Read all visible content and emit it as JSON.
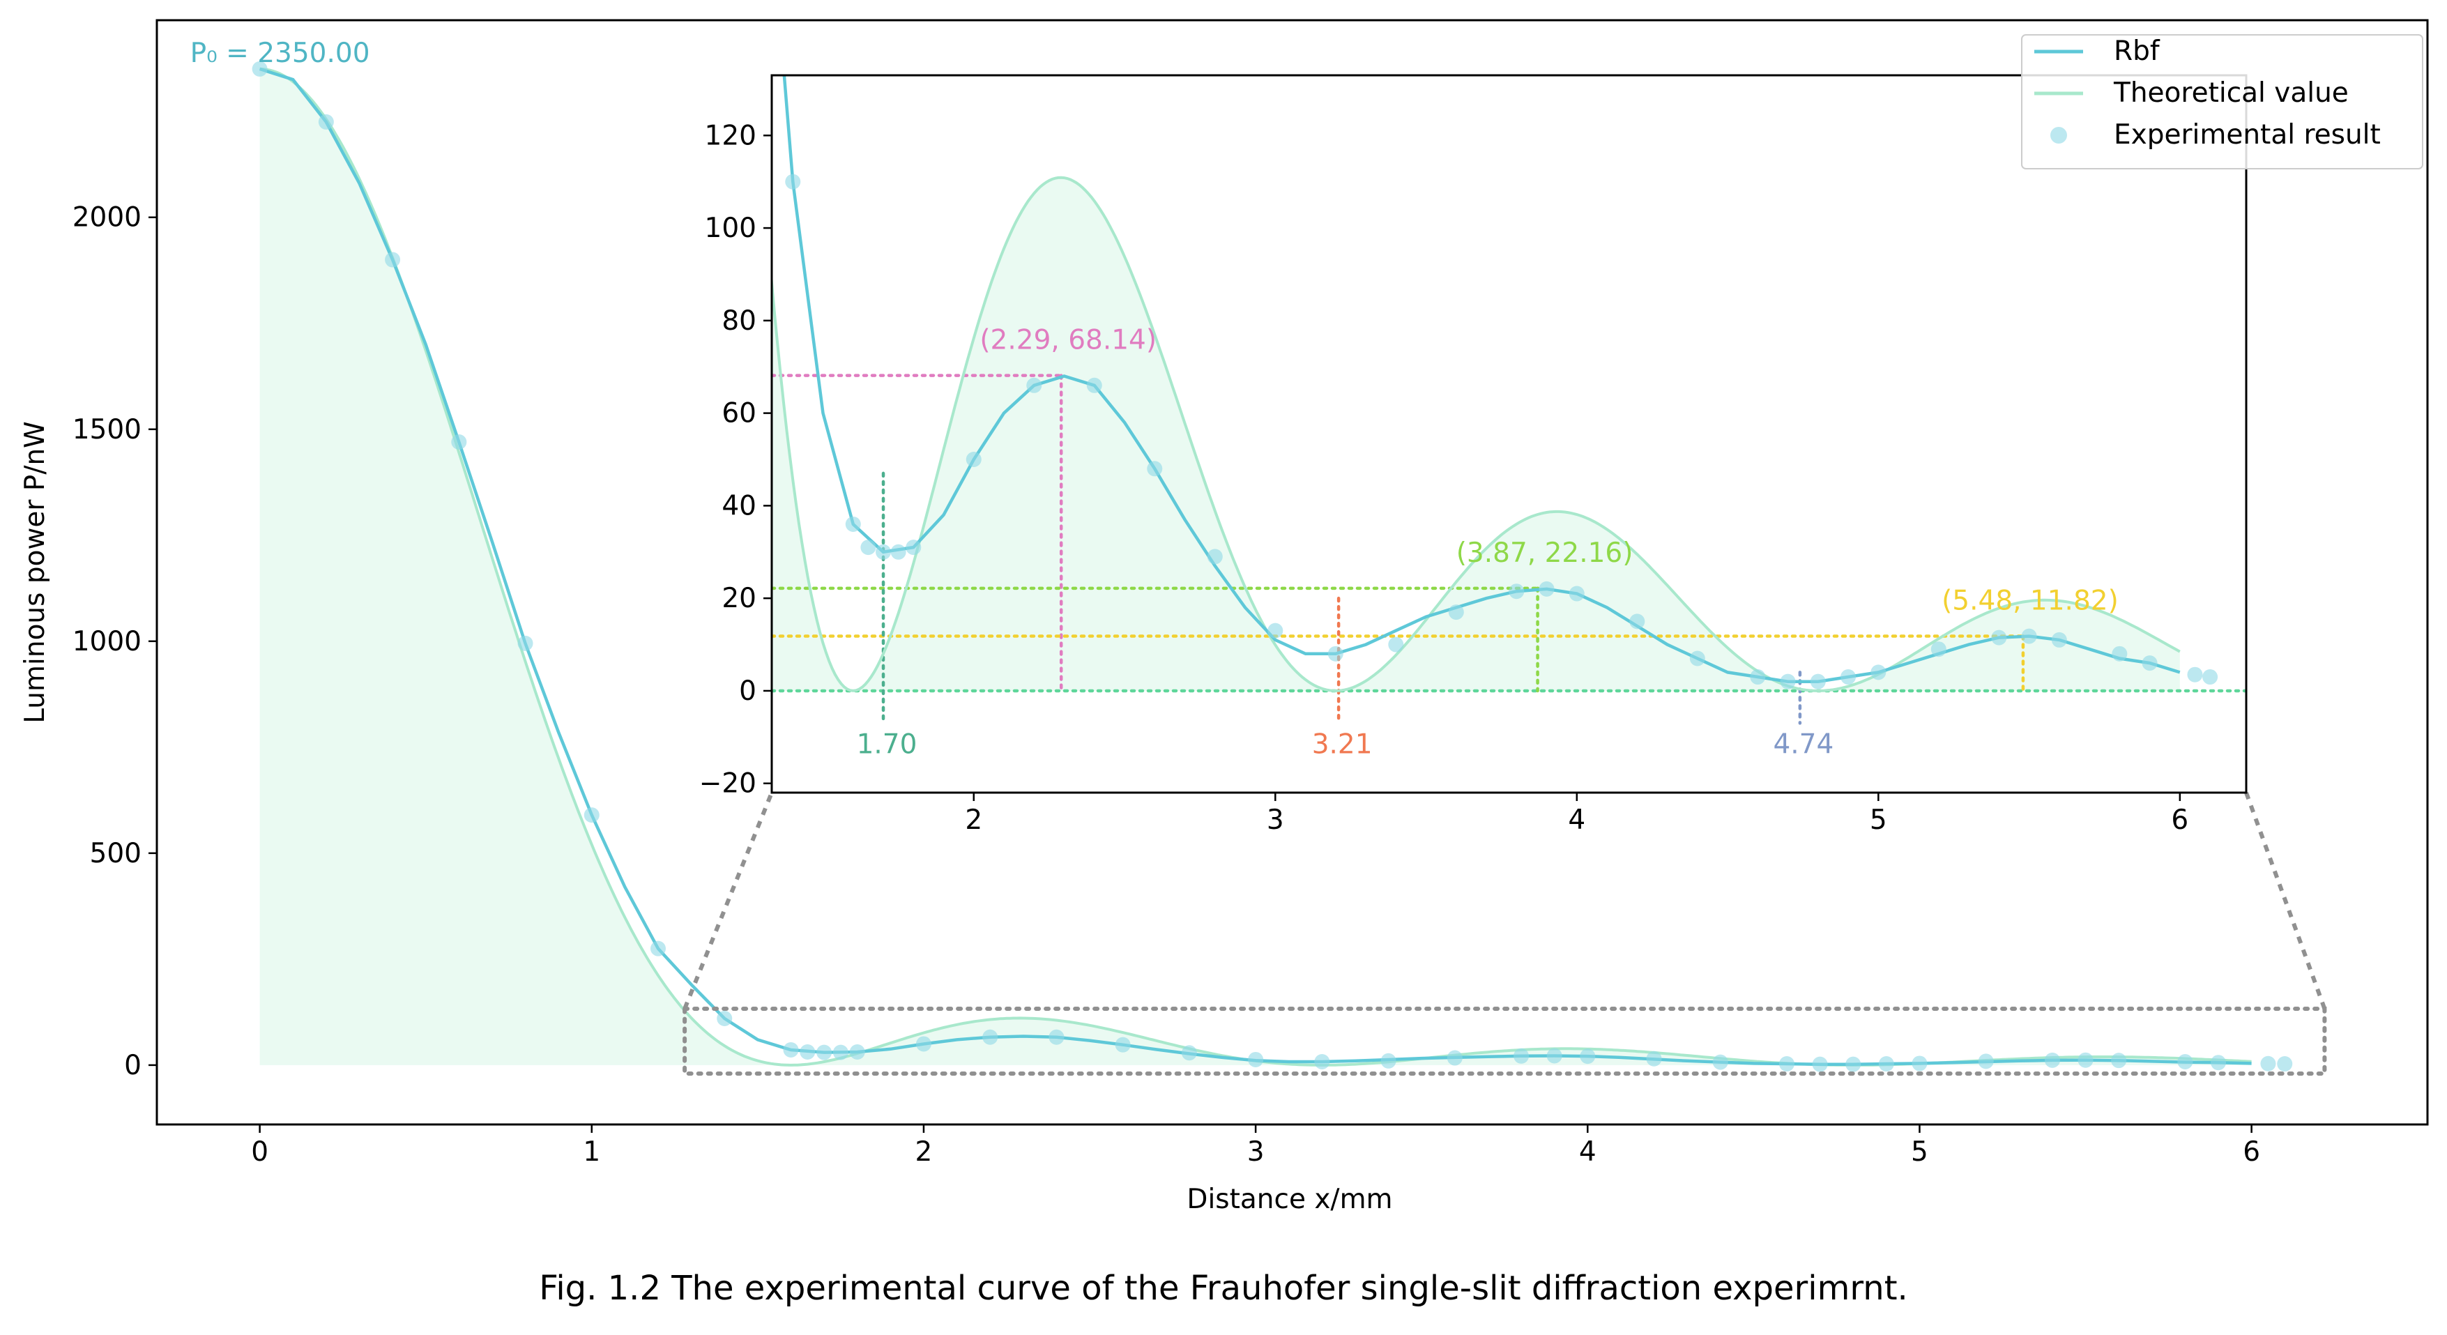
{
  "caption": "Fig. 1.2 The experimental curve of the Frauhofer single-slit diffraction experimrnt.",
  "colors": {
    "rbf": "#5ec8d8",
    "theory": "#a8e8cc",
    "experimental": "#8fd8e6",
    "fill": "#eafaf2",
    "zoom_box": "#909090",
    "zero_line": "#5ed69a",
    "peak1": "#e07cc0",
    "peak2": "#8ed848",
    "peak3": "#f2d030",
    "min1": "#4caf8e",
    "min2": "#f07850",
    "min3": "#8098c8"
  },
  "chart_data": [
    {
      "id": "main",
      "type": "line",
      "xlabel": "Distance x/mm",
      "ylabel": "Luminous power P/nW",
      "xlim": [
        -0.31,
        6.53
      ],
      "ylim": [
        -140,
        2465
      ],
      "xticks": [
        0,
        1,
        2,
        3,
        4,
        5,
        6
      ],
      "yticks": [
        0,
        500,
        1000,
        1500,
        2000
      ],
      "annotation": {
        "text": "P₀ = 2350.00",
        "x": 0,
        "y": 2350
      },
      "legend": {
        "position": "top-right",
        "entries": [
          "Rbf",
          "Theoretical value",
          "Experimental result"
        ]
      },
      "zoom_region": {
        "x": [
          1.28,
          6.22
        ],
        "y": [
          -20,
          133
        ]
      },
      "series": [
        {
          "name": "Rbf",
          "type": "line",
          "points": [
            [
              0,
              2350
            ],
            [
              0.1,
              2325
            ],
            [
              0.2,
              2225
            ],
            [
              0.3,
              2080
            ],
            [
              0.4,
              1900
            ],
            [
              0.5,
              1700
            ],
            [
              0.6,
              1470
            ],
            [
              0.7,
              1235
            ],
            [
              0.8,
              995
            ],
            [
              0.9,
              785
            ],
            [
              1.0,
              590
            ],
            [
              1.1,
              420
            ],
            [
              1.2,
              275
            ],
            [
              1.3,
              190
            ],
            [
              1.4,
              110
            ],
            [
              1.5,
              60
            ],
            [
              1.6,
              36
            ],
            [
              1.7,
              30
            ],
            [
              1.8,
              31
            ],
            [
              1.9,
              38
            ],
            [
              2.0,
              50
            ],
            [
              2.1,
              60
            ],
            [
              2.2,
              66
            ],
            [
              2.3,
              68
            ],
            [
              2.4,
              66
            ],
            [
              2.5,
              58
            ],
            [
              2.6,
              48
            ],
            [
              2.7,
              37
            ],
            [
              2.8,
              27
            ],
            [
              2.9,
              18
            ],
            [
              3.0,
              11
            ],
            [
              3.1,
              8
            ],
            [
              3.2,
              8
            ],
            [
              3.3,
              10
            ],
            [
              3.4,
              13
            ],
            [
              3.5,
              16
            ],
            [
              3.6,
              18
            ],
            [
              3.7,
              20
            ],
            [
              3.8,
              21.5
            ],
            [
              3.9,
              22
            ],
            [
              4.0,
              21
            ],
            [
              4.1,
              18
            ],
            [
              4.2,
              14
            ],
            [
              4.3,
              10
            ],
            [
              4.4,
              7
            ],
            [
              4.5,
              4
            ],
            [
              4.6,
              3
            ],
            [
              4.7,
              2
            ],
            [
              4.8,
              2
            ],
            [
              4.9,
              3
            ],
            [
              5.0,
              4
            ],
            [
              5.1,
              6
            ],
            [
              5.2,
              8
            ],
            [
              5.3,
              10
            ],
            [
              5.4,
              11.5
            ],
            [
              5.5,
              11.8
            ],
            [
              5.6,
              11
            ],
            [
              5.7,
              9
            ],
            [
              5.8,
              7
            ],
            [
              5.9,
              6
            ],
            [
              6.0,
              4
            ]
          ]
        },
        {
          "name": "Theoretical value",
          "type": "line",
          "function": "2350*sinc^2(x/1.6)",
          "x_range": [
            0,
            6.0
          ]
        },
        {
          "name": "Experimental result",
          "type": "scatter",
          "points": [
            [
              0,
              2350
            ],
            [
              0.2,
              2225
            ],
            [
              0.4,
              1900
            ],
            [
              0.6,
              1470
            ],
            [
              0.8,
              995
            ],
            [
              1.0,
              590
            ],
            [
              1.2,
              275
            ],
            [
              1.4,
              110
            ],
            [
              1.6,
              36
            ],
            [
              1.65,
              31
            ],
            [
              1.7,
              30
            ],
            [
              1.75,
              30
            ],
            [
              1.8,
              31
            ],
            [
              2.0,
              50
            ],
            [
              2.2,
              66
            ],
            [
              2.4,
              66
            ],
            [
              2.6,
              48
            ],
            [
              2.8,
              29
            ],
            [
              3.0,
              13
            ],
            [
              3.2,
              8
            ],
            [
              3.4,
              10
            ],
            [
              3.6,
              17
            ],
            [
              3.8,
              21.5
            ],
            [
              3.9,
              22
            ],
            [
              4.0,
              21
            ],
            [
              4.2,
              15
            ],
            [
              4.4,
              7
            ],
            [
              4.6,
              3
            ],
            [
              4.7,
              2
            ],
            [
              4.8,
              2
            ],
            [
              4.9,
              3
            ],
            [
              5.0,
              4
            ],
            [
              5.2,
              9
            ],
            [
              5.4,
              11.5
            ],
            [
              5.5,
              11.8
            ],
            [
              5.6,
              11
            ],
            [
              5.8,
              8
            ],
            [
              5.9,
              6
            ],
            [
              6.05,
              3.5
            ],
            [
              6.1,
              3
            ]
          ]
        }
      ]
    },
    {
      "id": "inset",
      "type": "line",
      "xlim": [
        1.33,
        6.22
      ],
      "ylim": [
        -22,
        133
      ],
      "xticks": [
        2,
        3,
        4,
        5,
        6
      ],
      "yticks": [
        -20,
        0,
        20,
        40,
        60,
        80,
        100,
        120
      ],
      "peaks": [
        {
          "label": "(2.29, 68.14)",
          "x": 2.29,
          "y": 68.14
        },
        {
          "label": "(3.87, 22.16)",
          "x": 3.87,
          "y": 22.16
        },
        {
          "label": "(5.48, 11.82)",
          "x": 5.48,
          "y": 11.82
        }
      ],
      "minima": [
        {
          "label": "1.70",
          "x": 1.7
        },
        {
          "label": "3.21",
          "x": 3.21
        },
        {
          "label": "4.74",
          "x": 4.74
        }
      ]
    }
  ]
}
